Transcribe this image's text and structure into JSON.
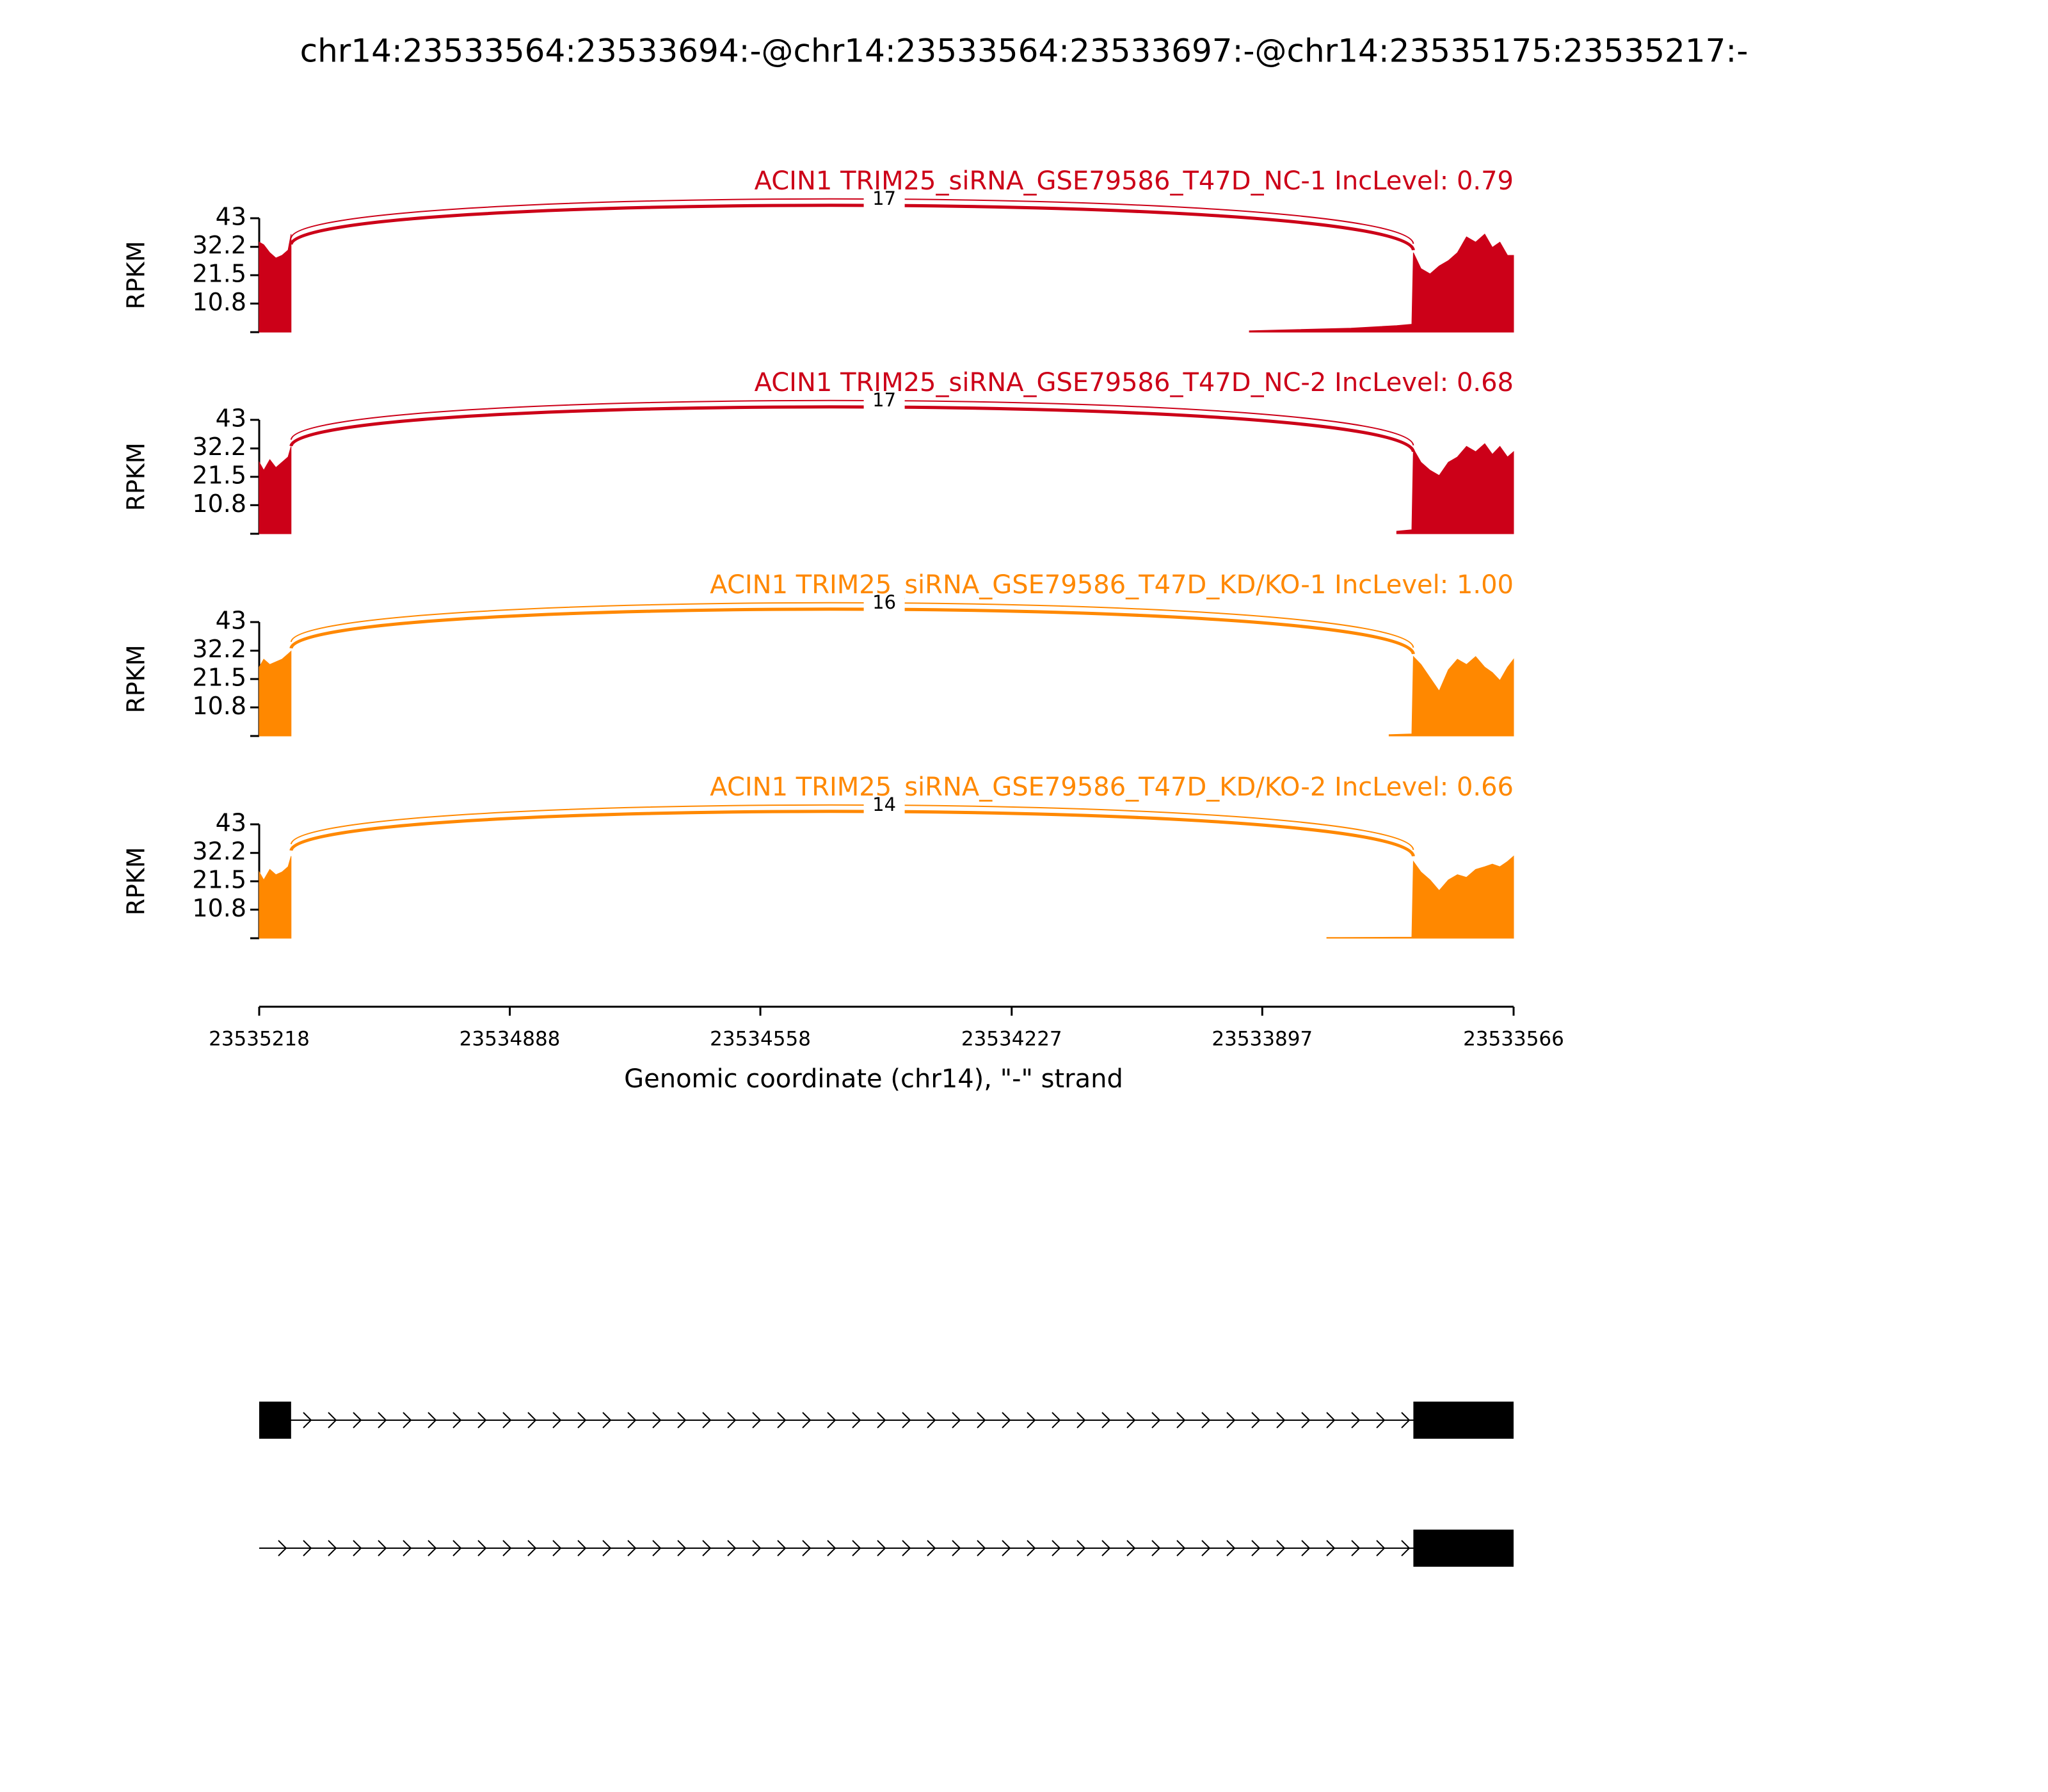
{
  "chart_data": {
    "type": "sashimi",
    "title": "chr14:23533564:23533694:-@chr14:23533564:23533697:-@chr14:23535175:23535217:-",
    "xlabel": "Genomic coordinate (chr14), \"-\" strand",
    "xlim": [
      23535218,
      23533566
    ],
    "xticks": [
      23535218,
      23534888,
      23534558,
      23534227,
      23533897,
      23533566
    ],
    "tracks": [
      {
        "title": "ACIN1 TRIM25_siRNA_GSE79586_T47D_NC-1 IncLevel: 0.79",
        "color": "#cc0018",
        "ylabel": "RPKM",
        "ylim": [
          0,
          43
        ],
        "yticks": [
          10.8,
          21.5,
          32.2,
          43
        ],
        "x": [
          23535218,
          23535212,
          23535204,
          23535196,
          23535188,
          23535180,
          23535176,
          23535100,
          23533914,
          23533850,
          23533780,
          23533720,
          23533700,
          23533698,
          23533688,
          23533676,
          23533664,
          23533652,
          23533640,
          23533628,
          23533616,
          23533604,
          23533594,
          23533584,
          23533574,
          23533566
        ],
        "values": [
          34,
          33,
          30,
          28,
          29,
          31,
          37,
          null,
          0.5,
          1,
          1.5,
          2.5,
          3,
          30,
          24,
          22,
          25,
          27,
          30,
          36,
          34,
          37,
          32,
          34,
          29,
          29
        ],
        "junction": {
          "start": 23535176,
          "end": 23533698,
          "count": 17
        }
      },
      {
        "title": "ACIN1 TRIM25_siRNA_GSE79586_T47D_NC-2 IncLevel: 0.68",
        "color": "#cc0018",
        "ylabel": "RPKM",
        "ylim": [
          0,
          43
        ],
        "yticks": [
          10.8,
          21.5,
          32.2,
          43
        ],
        "x": [
          23535218,
          23535212,
          23535204,
          23535196,
          23535188,
          23535180,
          23535176,
          23535100,
          23533720,
          23533700,
          23533698,
          23533688,
          23533676,
          23533664,
          23533652,
          23533640,
          23533628,
          23533616,
          23533604,
          23533594,
          23533584,
          23533574,
          23533566
        ],
        "values": [
          27,
          24,
          28,
          25,
          27,
          29,
          33,
          null,
          1,
          1.5,
          32,
          27,
          24,
          22,
          27,
          29,
          33,
          31,
          34,
          30,
          33,
          29,
          31
        ],
        "junction": {
          "start": 23535176,
          "end": 23533698,
          "count": 17
        }
      },
      {
        "title": "ACIN1 TRIM25_siRNA_GSE79586_T47D_KD/KO-1 IncLevel: 1.00",
        "color": "#ff8800",
        "ylabel": "RPKM",
        "ylim": [
          0,
          43
        ],
        "yticks": [
          10.8,
          21.5,
          32.2,
          43
        ],
        "x": [
          23535218,
          23535212,
          23535204,
          23535196,
          23535188,
          23535180,
          23535176,
          23535100,
          23533730,
          23533700,
          23533698,
          23533688,
          23533676,
          23533664,
          23533652,
          23533640,
          23533628,
          23533616,
          23533604,
          23533594,
          23533584,
          23533574,
          23533566
        ],
        "values": [
          26,
          29,
          27,
          28,
          29,
          31,
          32,
          null,
          0.5,
          0.8,
          30,
          27,
          22,
          17,
          25,
          29,
          27,
          30,
          26,
          24,
          21,
          26,
          29
        ],
        "junction": {
          "start": 23535176,
          "end": 23533698,
          "count": 16
        }
      },
      {
        "title": "ACIN1 TRIM25_siRNA_GSE79586_T47D_KD/KO-2 IncLevel: 0.66",
        "color": "#ff8800",
        "ylabel": "RPKM",
        "ylim": [
          0,
          43
        ],
        "yticks": [
          10.8,
          21.5,
          32.2,
          43
        ],
        "x": [
          23535218,
          23535212,
          23535204,
          23535196,
          23535188,
          23535180,
          23535176,
          23535100,
          23533812,
          23533792,
          23533700,
          23533698,
          23533688,
          23533676,
          23533664,
          23533652,
          23533640,
          23533628,
          23533616,
          23533604,
          23533594,
          23533584,
          23533574,
          23533566
        ],
        "values": [
          25,
          22,
          26,
          24,
          25,
          27,
          31,
          null,
          0.3,
          0.3,
          0.4,
          29,
          25,
          22,
          18,
          22,
          24,
          23,
          26,
          27,
          28,
          27,
          29,
          31
        ],
        "junction": {
          "start": 23535176,
          "end": 23533698,
          "count": 14
        }
      }
    ],
    "transcripts": [
      {
        "start": 23535218,
        "end": 23533566,
        "exons": [
          [
            23535218,
            23535176
          ],
          [
            23533698,
            23533566
          ]
        ]
      },
      {
        "start": 23535218,
        "end": 23533566,
        "exons": [
          [
            23533698,
            23533566
          ]
        ]
      }
    ]
  }
}
